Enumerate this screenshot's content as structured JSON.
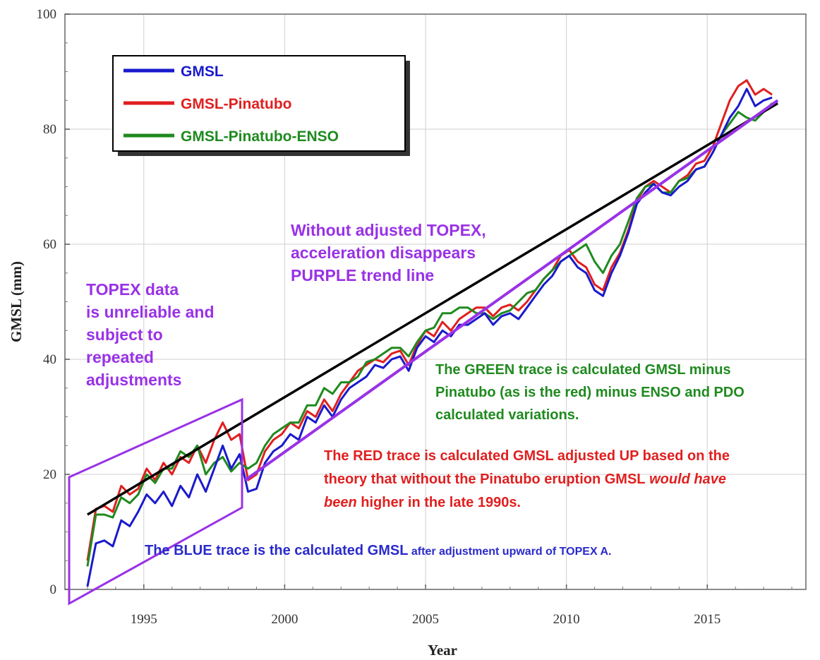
{
  "chart_data": {
    "type": "line",
    "xlabel": "Year",
    "ylabel": "GMSL (mm)",
    "xlim": [
      1992.2,
      2018.5
    ],
    "ylim": [
      0,
      100
    ],
    "x_ticks": [
      1995,
      2000,
      2005,
      2010,
      2015
    ],
    "y_ticks": [
      0,
      20,
      40,
      60,
      80,
      100
    ],
    "grid": true,
    "legend_position": "top-left",
    "legend": [
      {
        "name": "GMSL",
        "color": "#1a1acc"
      },
      {
        "name": "GMSL-Pinatubo",
        "color": "#e01f1f"
      },
      {
        "name": "GMSL-Pinatubo-ENSO",
        "color": "#1f8a1f"
      }
    ],
    "series": [
      {
        "name": "GMSL",
        "color": "#1a1acc",
        "x": [
          1993.0,
          1993.3,
          1993.6,
          1993.9,
          1994.2,
          1994.5,
          1994.8,
          1995.1,
          1995.4,
          1995.7,
          1996.0,
          1996.3,
          1996.6,
          1996.9,
          1997.2,
          1997.5,
          1997.8,
          1998.1,
          1998.4,
          1998.7,
          1999.0,
          1999.3,
          1999.6,
          1999.9,
          2000.2,
          2000.5,
          2000.8,
          2001.1,
          2001.4,
          2001.7,
          2002.0,
          2002.3,
          2002.6,
          2002.9,
          2003.2,
          2003.5,
          2003.8,
          2004.1,
          2004.4,
          2004.7,
          2005.0,
          2005.3,
          2005.6,
          2005.9,
          2006.2,
          2006.5,
          2006.8,
          2007.1,
          2007.4,
          2007.7,
          2008.0,
          2008.3,
          2008.6,
          2008.9,
          2009.2,
          2009.5,
          2009.8,
          2010.1,
          2010.4,
          2010.7,
          2011.0,
          2011.3,
          2011.6,
          2011.9,
          2012.2,
          2012.5,
          2012.8,
          2013.1,
          2013.4,
          2013.7,
          2014.0,
          2014.3,
          2014.6,
          2014.9,
          2015.2,
          2015.5,
          2015.8,
          2016.1,
          2016.4,
          2016.7,
          2017.0,
          2017.3
        ],
        "values": [
          0.5,
          8,
          8.5,
          7.5,
          12,
          11,
          13.5,
          16.5,
          15,
          17,
          14.5,
          18,
          16,
          20,
          17,
          21,
          25,
          21,
          23.5,
          17,
          17.5,
          22,
          24,
          25,
          27,
          26,
          30,
          29,
          32,
          30,
          33,
          35,
          36,
          37,
          39,
          38.5,
          40,
          40.5,
          38,
          42,
          44,
          43,
          45,
          44,
          46,
          46,
          47,
          48,
          46,
          47.5,
          48,
          47,
          49,
          51,
          53,
          54.5,
          57,
          58,
          56,
          55,
          52,
          51,
          55,
          58,
          62,
          67,
          69,
          70.5,
          69,
          68.5,
          70,
          71,
          73,
          73.5,
          76,
          79,
          82,
          84,
          87,
          84,
          85,
          85.5
        ]
      },
      {
        "name": "GMSL-Pinatubo",
        "color": "#e01f1f",
        "x": [
          1993.0,
          1993.3,
          1993.6,
          1993.9,
          1994.2,
          1994.5,
          1994.8,
          1995.1,
          1995.4,
          1995.7,
          1996.0,
          1996.3,
          1996.6,
          1996.9,
          1997.2,
          1997.5,
          1997.8,
          1998.1,
          1998.4,
          1998.7,
          1999.0,
          1999.3,
          1999.6,
          1999.9,
          2000.2,
          2000.5,
          2000.8,
          2001.1,
          2001.4,
          2001.7,
          2002.0,
          2002.3,
          2002.6,
          2002.9,
          2003.2,
          2003.5,
          2003.8,
          2004.1,
          2004.4,
          2004.7,
          2005.0,
          2005.3,
          2005.6,
          2005.9,
          2006.2,
          2006.5,
          2006.8,
          2007.1,
          2007.4,
          2007.7,
          2008.0,
          2008.3,
          2008.6,
          2008.9,
          2009.2,
          2009.5,
          2009.8,
          2010.1,
          2010.4,
          2010.7,
          2011.0,
          2011.3,
          2011.6,
          2011.9,
          2012.2,
          2012.5,
          2012.8,
          2013.1,
          2013.4,
          2013.7,
          2014.0,
          2014.3,
          2014.6,
          2014.9,
          2015.2,
          2015.5,
          2015.8,
          2016.1,
          2016.4,
          2016.7,
          2017.0,
          2017.3
        ],
        "values": [
          5,
          14,
          14.5,
          13.5,
          18,
          16.5,
          17.5,
          21,
          19,
          22,
          20,
          23,
          22,
          25,
          22,
          26,
          29,
          26,
          27,
          19,
          20,
          24,
          26,
          27,
          29,
          28,
          31,
          30,
          33,
          31,
          34,
          36,
          38,
          39,
          40,
          39.5,
          41,
          41.5,
          39,
          42.5,
          45,
          44,
          46.5,
          45,
          47,
          48,
          49,
          49,
          47.5,
          49,
          49.5,
          48.5,
          50,
          52,
          54,
          55.5,
          58,
          59,
          57,
          56,
          53,
          52,
          56,
          58.5,
          62.5,
          67.5,
          70,
          71,
          70,
          69,
          71,
          72,
          74,
          74.5,
          77,
          81,
          85,
          87.5,
          88.5,
          86,
          87,
          86
        ]
      },
      {
        "name": "GMSL-Pinatubo-ENSO",
        "color": "#1f8a1f",
        "x": [
          1993.0,
          1993.3,
          1993.6,
          1993.9,
          1994.2,
          1994.5,
          1994.8,
          1995.1,
          1995.4,
          1995.7,
          1996.0,
          1996.3,
          1996.6,
          1996.9,
          1997.2,
          1997.5,
          1997.8,
          1998.1,
          1998.4,
          1998.7,
          1999.0,
          1999.3,
          1999.6,
          1999.9,
          2000.2,
          2000.5,
          2000.8,
          2001.1,
          2001.4,
          2001.7,
          2002.0,
          2002.3,
          2002.6,
          2002.9,
          2003.2,
          2003.5,
          2003.8,
          2004.1,
          2004.4,
          2004.7,
          2005.0,
          2005.3,
          2005.6,
          2005.9,
          2006.2,
          2006.5,
          2006.8,
          2007.1,
          2007.4,
          2007.7,
          2008.0,
          2008.3,
          2008.6,
          2008.9,
          2009.2,
          2009.5,
          2009.8,
          2010.1,
          2010.4,
          2010.7,
          2011.0,
          2011.3,
          2011.6,
          2011.9,
          2012.2,
          2012.5,
          2012.8,
          2013.1,
          2013.4,
          2013.7,
          2014.0,
          2014.3,
          2014.6,
          2014.9,
          2015.2,
          2015.5,
          2015.8,
          2016.1,
          2016.4,
          2016.7,
          2017.0,
          2017.3
        ],
        "values": [
          4,
          13,
          13,
          12.5,
          16,
          15,
          16.5,
          20,
          18.5,
          21,
          21,
          24,
          23,
          25,
          20,
          22,
          23,
          20.5,
          22,
          21,
          22,
          25,
          27,
          28,
          29,
          29,
          32,
          32,
          35,
          34,
          36,
          36,
          37,
          39.5,
          40,
          41,
          42,
          42,
          40.5,
          43,
          45,
          45.5,
          48,
          48,
          49,
          49,
          48,
          48,
          47,
          48,
          48.5,
          50,
          51.5,
          52,
          54,
          55.5,
          57,
          58,
          59,
          60,
          57,
          55,
          58,
          60,
          64,
          68,
          70,
          70.5,
          69,
          69,
          71,
          71.5,
          73,
          73.5,
          76,
          79,
          81,
          83,
          82,
          81.5,
          83,
          84.5
        ]
      }
    ],
    "trend_lines": [
      {
        "name": "black trend",
        "color": "#000000",
        "x": [
          1993.0,
          2017.5
        ],
        "values": [
          13,
          84.5
        ]
      },
      {
        "name": "purple trend",
        "color": "#9932e6",
        "x": [
          1998.6,
          2017.5
        ],
        "values": [
          19,
          85
        ]
      }
    ],
    "topex_box_color": "#9932e6",
    "annotations": [
      {
        "id": "purple_top",
        "color": "#9932e6",
        "size": 23,
        "lines": [
          "Without adjusted TOPEX,",
          "acceleration disappears",
          "PURPLE trend line"
        ]
      },
      {
        "id": "purple_left",
        "color": "#9932e6",
        "size": 23,
        "lines": [
          "TOPEX data",
          "is unreliable and",
          "subject to",
          "repeated",
          "adjustments"
        ]
      },
      {
        "id": "green",
        "color": "#1f8a1f",
        "size": 20,
        "lines": [
          "The GREEN  trace is calculated GMSL minus",
          "Pinatubo (as is the red) minus ENSO and PDO",
          "calculated  variations."
        ]
      },
      {
        "id": "red",
        "color": "#e01f1f",
        "size": 20,
        "lines": [
          "The RED trace is calculated GMSL adjusted UP based on the",
          "theory that without the Pinatubo eruption GMSL",
          "been"
        ],
        "italic_1": "would have",
        "tail_2": " higher in the late 1990s."
      },
      {
        "id": "blue",
        "color": "#2a2acc",
        "size": 20,
        "main": "The BLUE trace is the calculated GMSL",
        "small": " after adjustment upward of TOPEX A."
      }
    ]
  }
}
